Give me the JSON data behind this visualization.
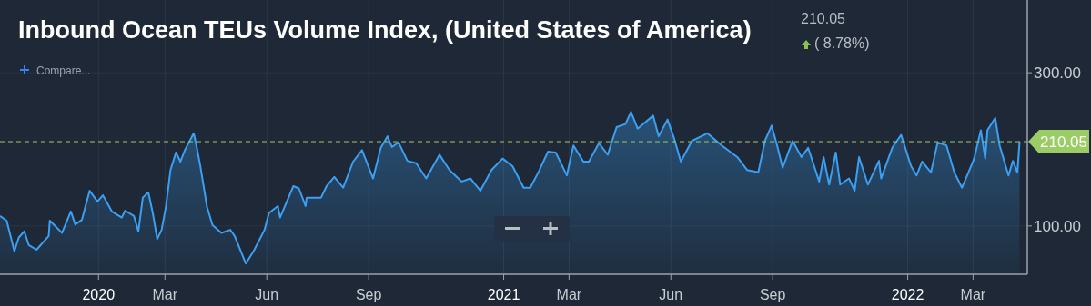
{
  "chart_data": {
    "type": "area",
    "title": "Inbound Ocean TEUs Volume Index, (United States of America)",
    "annotations": [
      "210.05",
      "( 8.78%)",
      "Compare..."
    ],
    "x": [
      "2019-10-04",
      "2019-10-10",
      "2019-10-17",
      "2019-10-21",
      "2019-10-26",
      "2019-10-30",
      "2019-11-06",
      "2019-11-17",
      "2019-11-18",
      "2019-11-29",
      "2019-12-07",
      "2019-12-11",
      "2019-12-17",
      "2019-12-24",
      "2019-12-31",
      "2020-01-05",
      "2020-01-13",
      "2020-01-22",
      "2020-01-25",
      "2020-02-02",
      "2020-02-06",
      "2020-02-10",
      "2020-02-15",
      "2020-02-19",
      "2020-02-23",
      "2020-02-27",
      "2020-03-02",
      "2020-03-06",
      "2020-03-11",
      "2020-03-15",
      "2020-03-19",
      "2020-03-27",
      "2020-03-29",
      "2020-04-02",
      "2020-04-08",
      "2020-04-13",
      "2020-04-21",
      "2020-04-29",
      "2020-05-03",
      "2020-05-13",
      "2020-05-20",
      "2020-05-30",
      "2020-06-03",
      "2020-06-11",
      "2020-06-13",
      "2020-06-25",
      "2020-06-30",
      "2020-07-06",
      "2020-07-07",
      "2020-07-20",
      "2020-07-25",
      "2020-08-01",
      "2020-08-09",
      "2020-08-18",
      "2020-08-26",
      "2020-09-05",
      "2020-09-12",
      "2020-09-18",
      "2020-09-22",
      "2020-09-28",
      "2020-10-06",
      "2020-10-14",
      "2020-10-23",
      "2020-11-04",
      "2020-11-13",
      "2020-11-24",
      "2020-12-02",
      "2020-12-11",
      "2020-12-21",
      "2020-12-31",
      "2021-01-09",
      "2021-01-19",
      "2021-01-25",
      "2021-02-02",
      "2021-02-10",
      "2021-02-17",
      "2021-02-27",
      "2021-03-05",
      "2021-03-14",
      "2021-03-19",
      "2021-03-28",
      "2021-04-05",
      "2021-04-13",
      "2021-04-21",
      "2021-04-26",
      "2021-05-02",
      "2021-05-16",
      "2021-05-21",
      "2021-05-29",
      "2021-06-04",
      "2021-06-10",
      "2021-06-20",
      "2021-07-04",
      "2021-07-17",
      "2021-07-31",
      "2021-08-09",
      "2021-08-19",
      "2021-08-25",
      "2021-08-31",
      "2021-09-05",
      "2021-09-10",
      "2021-09-19",
      "2021-09-27",
      "2021-10-03",
      "2021-10-13",
      "2021-10-17",
      "2021-10-22",
      "2021-10-28",
      "2021-11-01",
      "2021-11-09",
      "2021-11-14",
      "2021-11-18",
      "2021-11-26",
      "2021-12-06",
      "2021-12-08",
      "2021-12-18",
      "2021-12-26",
      "2022-01-04",
      "2022-01-09",
      "2022-01-14",
      "2022-01-22",
      "2022-01-28",
      "2022-02-05",
      "2022-02-12",
      "2022-02-19",
      "2022-02-24",
      "2022-03-02",
      "2022-03-08",
      "2022-03-12",
      "2022-03-14",
      "2022-03-21",
      "2022-03-25",
      "2022-04-02",
      "2022-04-06",
      "2022-04-10",
      "2022-04-12"
    ],
    "series": [
      {
        "color": "#3b9ff2",
        "values": [
          113,
          107,
          67,
          85,
          93,
          75,
          69,
          87,
          107,
          91,
          119,
          102,
          108,
          146,
          132,
          140,
          119,
          111,
          120,
          113,
          93,
          137,
          144,
          117,
          83,
          95,
          126,
          173,
          196,
          184,
          199,
          221,
          208,
          178,
          125,
          101,
          91,
          95,
          87,
          51,
          67,
          95,
          117,
          126,
          111,
          152,
          149,
          126,
          137,
          137,
          152,
          164,
          150,
          184,
          199,
          162,
          202,
          217,
          203,
          209,
          185,
          182,
          162,
          193,
          173,
          158,
          162,
          146,
          173,
          188,
          178,
          150,
          150,
          172,
          197,
          196,
          166,
          205,
          184,
          184,
          208,
          193,
          229,
          233,
          249,
          227,
          244,
          217,
          239,
          214,
          184,
          211,
          221,
          205,
          190,
          173,
          170,
          211,
          231,
          205,
          176,
          211,
          190,
          202,
          158,
          190,
          154,
          196,
          154,
          162,
          146,
          190,
          154,
          185,
          162,
          202,
          219,
          178,
          166,
          184,
          170,
          209,
          205,
          170,
          150,
          167,
          188,
          225,
          188,
          225,
          241,
          205,
          166,
          185,
          170,
          210
        ]
      }
    ],
    "xlim": [
      "2019-10-04",
      "2022-04-19"
    ],
    "xticks": [
      {
        "value": "2020-01-01",
        "label": "2020"
      },
      {
        "value": "2020-03-01",
        "label": "Mar"
      },
      {
        "value": "2020-06-01",
        "label": "Jun"
      },
      {
        "value": "2020-09-01",
        "label": "Sep"
      },
      {
        "value": "2021-01-01",
        "label": "2021"
      },
      {
        "value": "2021-03-01",
        "label": "Mar"
      },
      {
        "value": "2021-06-01",
        "label": "Jun"
      },
      {
        "value": "2021-09-01",
        "label": "Sep"
      },
      {
        "value": "2022-01-01",
        "label": "2022"
      },
      {
        "value": "2022-03-01",
        "label": "Mar"
      }
    ],
    "ylim": [
      37,
      395
    ],
    "yticks": [
      {
        "value": 100,
        "label": "100.00"
      },
      {
        "value": 300,
        "label": "300.00"
      }
    ],
    "grid": true,
    "ref_lines": [
      {
        "axis": "y",
        "value": 210.05,
        "label": "210.05",
        "color": "#9ccc65",
        "line_style": "dashed"
      }
    ]
  }
}
